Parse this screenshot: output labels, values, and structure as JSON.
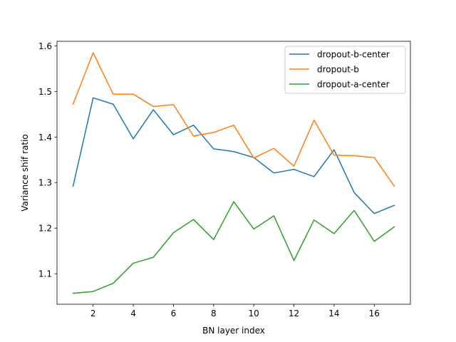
{
  "chart_data": {
    "type": "line",
    "title": "",
    "xlabel": "BN layer index",
    "ylabel": "Variance shif ratio",
    "x": [
      1,
      2,
      3,
      4,
      5,
      6,
      7,
      8,
      9,
      10,
      11,
      12,
      13,
      14,
      15,
      16,
      17
    ],
    "xlim": [
      0.2,
      17.8
    ],
    "ylim": [
      1.033,
      1.61
    ],
    "xticks": [
      2,
      4,
      6,
      8,
      10,
      12,
      14,
      16
    ],
    "yticks": [
      1.1,
      1.2,
      1.3,
      1.4,
      1.5,
      1.6
    ],
    "xtick_labels": [
      "2",
      "4",
      "6",
      "8",
      "10",
      "12",
      "14",
      "16"
    ],
    "ytick_labels": [
      "1.1",
      "1.2",
      "1.3",
      "1.4",
      "1.5",
      "1.6"
    ],
    "grid": false,
    "legend_position": "top-right",
    "series": [
      {
        "name": "dropout-b-center",
        "color": "#1f77b4",
        "values": [
          1.292,
          1.486,
          1.472,
          1.396,
          1.46,
          1.405,
          1.426,
          1.374,
          1.368,
          1.355,
          1.321,
          1.329,
          1.313,
          1.372,
          1.278,
          1.232,
          1.25
        ]
      },
      {
        "name": "dropout-b",
        "color": "#ff7f0e",
        "values": [
          1.472,
          1.585,
          1.494,
          1.494,
          1.467,
          1.471,
          1.402,
          1.41,
          1.426,
          1.354,
          1.375,
          1.336,
          1.437,
          1.36,
          1.359,
          1.355,
          1.292
        ]
      },
      {
        "name": "dropout-a-center",
        "color": "#2ca02c",
        "values": [
          1.057,
          1.061,
          1.079,
          1.123,
          1.136,
          1.19,
          1.219,
          1.175,
          1.258,
          1.198,
          1.227,
          1.129,
          1.218,
          1.188,
          1.239,
          1.171,
          1.203
        ]
      }
    ]
  }
}
